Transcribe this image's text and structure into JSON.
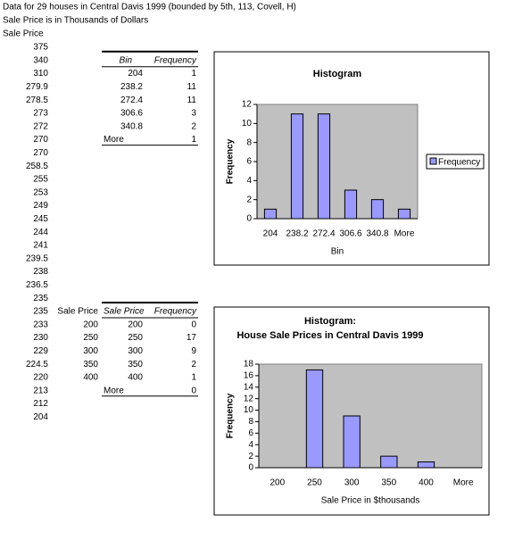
{
  "header": {
    "line1": "Data for 29 houses in Central Davis 1999 (bounded by 5th, 113, Covell, H)",
    "line2": "Sale Price is in Thousands of Dollars",
    "column_label": "Sale Price"
  },
  "prices": [
    375,
    340,
    310,
    279.9,
    278.5,
    273,
    272,
    270,
    270,
    258.5,
    255,
    253,
    249,
    245,
    244,
    241,
    239.5,
    238,
    236.5,
    235,
    235,
    233,
    230,
    229,
    224.5,
    220,
    213,
    212,
    204
  ],
  "bin_table": {
    "headers": [
      "Bin",
      "Frequency"
    ],
    "rows": [
      [
        204,
        1
      ],
      [
        238.2,
        11
      ],
      [
        272.4,
        11
      ],
      [
        306.6,
        3
      ],
      [
        340.8,
        2
      ],
      [
        "More",
        1
      ]
    ]
  },
  "sale_price_column": {
    "label": "Sale Price",
    "values": [
      200,
      250,
      300,
      350,
      400
    ]
  },
  "price_table": {
    "headers": [
      "Sale Price",
      "Frequency"
    ],
    "rows": [
      [
        200,
        0
      ],
      [
        250,
        17
      ],
      [
        300,
        9
      ],
      [
        350,
        2
      ],
      [
        400,
        1
      ],
      [
        "More",
        0
      ]
    ]
  },
  "chart_data": [
    {
      "type": "bar",
      "title": "Histogram",
      "categories": [
        "204",
        "238.2",
        "272.4",
        "306.6",
        "340.8",
        "More"
      ],
      "series": [
        {
          "name": "Frequency",
          "color": "#9999ff",
          "values": [
            1,
            11,
            11,
            3,
            2,
            1
          ]
        }
      ],
      "x_label": "Bin",
      "y_label": "Frequency",
      "ylim": [
        0,
        12
      ],
      "yticks": [
        0,
        2,
        4,
        6,
        8,
        10,
        12
      ],
      "legend": "right",
      "plot_background": "#c0c0c0"
    },
    {
      "type": "bar",
      "title": "Histogram:",
      "subtitle": "House Sale Prices in Central Davis 1999",
      "categories": [
        "200",
        "250",
        "300",
        "350",
        "400",
        "More"
      ],
      "values": [
        0,
        17,
        9,
        2,
        1,
        0
      ],
      "color": "#9999ff",
      "x_label": "Sale Price in $thousands",
      "y_label": "Frequency",
      "ylim": [
        0,
        18
      ],
      "yticks": [
        0,
        2,
        4,
        6,
        8,
        10,
        12,
        14,
        16,
        18
      ],
      "plot_background": "#c0c0c0"
    }
  ]
}
